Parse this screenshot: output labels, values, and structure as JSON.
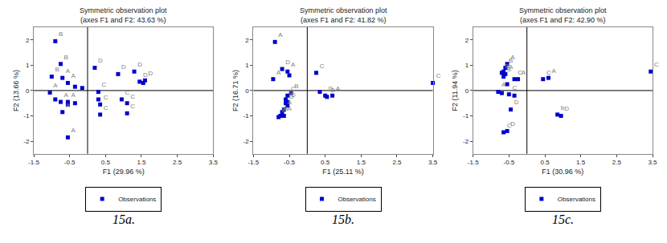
{
  "chart_data": [
    {
      "type": "scatter",
      "title": "Symmetric observation plot\n(axes F1 and F2: 43.63 %)",
      "xlabel": "F1 (29.96 %)",
      "ylabel": "F2 (13.66 %)",
      "xlim": [
        -1.5,
        3.5
      ],
      "ylim": [
        -2.5,
        2.5
      ],
      "xticks": [
        -1.5,
        -0.5,
        0.5,
        1.5,
        2.5,
        3.5
      ],
      "yticks": [
        -2,
        -1,
        0,
        1,
        2
      ],
      "vline": 0.0,
      "hline": 0.0,
      "grid": false,
      "legend": "below",
      "annotations": [
        "15a."
      ],
      "series": [
        {
          "name": "Observations",
          "color": "#0000cc",
          "marker": "square",
          "x": [
            -0.9,
            -0.75,
            -1.0,
            -0.7,
            -0.55,
            -0.35,
            -0.15,
            -1.05,
            -0.9,
            -0.75,
            -0.55,
            -0.35,
            -0.55,
            -0.7,
            -0.55,
            0.2,
            0.3,
            0.35,
            0.35,
            0.3,
            0.85,
            0.95,
            1.1,
            1.1,
            1.3,
            1.45,
            1.55,
            1.6
          ],
          "values": [
            1.95,
            1.05,
            0.55,
            0.5,
            0.3,
            0.15,
            0.1,
            -0.08,
            -0.35,
            -0.45,
            -0.45,
            -0.5,
            -0.55,
            -0.85,
            -1.85,
            0.9,
            -0.05,
            -0.55,
            -0.95,
            -0.35,
            0.65,
            -0.35,
            -0.5,
            -0.9,
            0.75,
            0.35,
            0.3,
            0.4
          ],
          "labels": [
            "B",
            "B",
            "B",
            "A",
            "A",
            null,
            null,
            "A",
            null,
            "A",
            "A",
            null,
            null,
            "A",
            "A",
            "D",
            "C",
            "C",
            "C",
            null,
            "D",
            "C",
            "C",
            "C",
            "D",
            "D",
            null,
            "D"
          ]
        }
      ]
    },
    {
      "type": "scatter",
      "title": "Symmetric observation plot\n(axes F1 and F2: 41.82 %)",
      "xlabel": "F1 (25.11 %)",
      "ylabel": "F2 (16.71 %)",
      "xlim": [
        -1.5,
        3.5
      ],
      "ylim": [
        -2.5,
        2.5
      ],
      "xticks": [
        -1.5,
        -0.5,
        0.5,
        1.5,
        2.5,
        3.5
      ],
      "yticks": [
        -2,
        -1,
        0,
        1,
        2
      ],
      "vline": 0.0,
      "hline": 0.0,
      "grid": false,
      "legend": "below",
      "annotations": [
        "15b."
      ],
      "series": [
        {
          "name": "Observations",
          "color": "#0000cc",
          "marker": "square",
          "x": [
            -0.9,
            -0.7,
            -0.55,
            -0.95,
            -0.5,
            -0.45,
            -0.55,
            -0.6,
            -0.55,
            -0.6,
            -0.55,
            -0.65,
            -0.7,
            -0.65,
            -0.75,
            -0.8,
            0.25,
            0.35,
            0.5,
            0.55,
            0.7,
            3.5
          ],
          "values": [
            1.92,
            0.85,
            0.75,
            0.45,
            0.6,
            -0.1,
            -0.2,
            -0.35,
            -0.45,
            -0.5,
            -0.6,
            -0.75,
            -0.85,
            -1.0,
            -1.0,
            -1.05,
            0.7,
            -0.05,
            -0.2,
            -0.25,
            -0.2,
            0.3
          ],
          "labels": [
            "A",
            "D",
            "A",
            "A",
            null,
            "B",
            "C",
            "B",
            "D",
            "D",
            null,
            "A",
            null,
            "A",
            "B",
            "B",
            "C",
            null,
            "D",
            "D",
            "A",
            "C"
          ]
        }
      ]
    },
    {
      "type": "scatter",
      "title": "Symmetric observation plot\n(axes F1 and F2: 42.90 %)",
      "xlabel": "F1 (30.96 %)",
      "ylabel": "F2 (11.94 %)",
      "xlim": [
        -1.5,
        3.5
      ],
      "ylim": [
        -2.5,
        2.5
      ],
      "xticks": [
        -1.5,
        -0.5,
        0.5,
        1.5,
        2.5,
        3.5
      ],
      "yticks": [
        -2,
        -1,
        0,
        1,
        2
      ],
      "vline": 0.0,
      "hline": 0.0,
      "grid": false,
      "legend": "below",
      "annotations": [
        "15c."
      ],
      "series": [
        {
          "name": "Observations",
          "color": "#0000cc",
          "marker": "square",
          "x": [
            -0.55,
            -0.6,
            -0.65,
            -0.7,
            -0.6,
            -0.65,
            -0.55,
            -0.35,
            -0.25,
            -0.8,
            -0.7,
            -0.5,
            -0.35,
            -0.45,
            -0.55,
            -0.65,
            0.45,
            0.6,
            0.85,
            0.95,
            3.45
          ],
          "values": [
            1.05,
            0.9,
            0.75,
            0.7,
            0.65,
            0.55,
            0.25,
            0.45,
            0.45,
            -0.05,
            -0.1,
            -0.15,
            -0.2,
            -0.75,
            -1.6,
            -1.65,
            0.45,
            0.5,
            -0.95,
            -1.0,
            0.75
          ],
          "labels": [
            "A",
            "B",
            null,
            "B",
            "A",
            "B",
            null,
            "C",
            "A",
            "A",
            null,
            "C",
            null,
            "D",
            "D",
            "C",
            "C",
            "A",
            "b",
            "D",
            "C"
          ]
        }
      ]
    }
  ]
}
